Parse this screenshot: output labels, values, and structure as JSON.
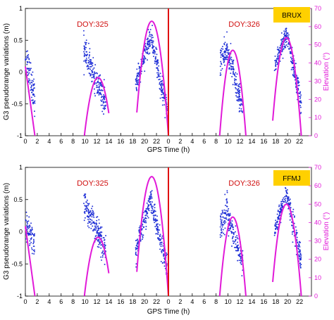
{
  "colors": {
    "pseudorange": "#1f2fd6",
    "elevation": "#e11ad8",
    "divider": "#e01010",
    "doy_label": "#d01010",
    "station_box": "#ffd000"
  },
  "chart_data": [
    {
      "type": "scatter",
      "station": "BRUX",
      "ylabel": "G3 pseudorange variations (m)",
      "y2label": "Elevation (°)",
      "xlabel": "GPS Time (h)",
      "ylim": [
        -1,
        1
      ],
      "y2lim": [
        0,
        70
      ],
      "yticks": [
        "-1",
        "-0.5",
        "0",
        "0.5",
        "1"
      ],
      "y2ticks": [
        "0",
        "10",
        "20",
        "30",
        "40",
        "50",
        "60",
        "70"
      ],
      "days": [
        {
          "label": "DOY:325",
          "xlim": [
            0,
            24
          ],
          "xticks": [
            "0",
            "2",
            "4",
            "6",
            "8",
            "10",
            "12",
            "14",
            "16",
            "18",
            "20",
            "22"
          ],
          "scatter_clusters": [
            {
              "x_start": 0.0,
              "x_end": 1.6,
              "y_start": 0.25,
              "y_end": -0.4,
              "noise": 0.25
            },
            {
              "x_start": 9.8,
              "x_end": 13.5,
              "y_start": 0.35,
              "y_end": -0.5,
              "noise": 0.2
            },
            {
              "x_start": 18.5,
              "x_end": 21.0,
              "y_start": -0.2,
              "y_end": 0.55,
              "noise": 0.15
            },
            {
              "x_start": 21.0,
              "x_end": 23.8,
              "y_start": 0.55,
              "y_end": -0.6,
              "noise": 0.18
            }
          ],
          "elevation_arcs": [
            {
              "x_start": 0.0,
              "x_end": 1.6,
              "el_start": 38,
              "el_end": 0
            },
            {
              "x_start": 9.9,
              "x_end": 14.0,
              "el_peak": 32,
              "x_peak": 12.2
            },
            {
              "x_start": 18.7,
              "x_end": 24.0,
              "el_peak": 63,
              "x_peak": 21.2
            }
          ]
        },
        {
          "label": "DOY:326",
          "xlim": [
            0,
            24
          ],
          "xticks": [
            "0",
            "2",
            "4",
            "6",
            "8",
            "10",
            "12",
            "14",
            "16",
            "18",
            "20",
            "22"
          ],
          "scatter_clusters": [
            {
              "x_start": 8.7,
              "x_end": 10.0,
              "y_start": 0.15,
              "y_end": 0.4,
              "noise": 0.2
            },
            {
              "x_start": 10.0,
              "x_end": 12.5,
              "y_start": 0.3,
              "y_end": -0.6,
              "noise": 0.18
            },
            {
              "x_start": 17.8,
              "x_end": 19.8,
              "y_start": 0.1,
              "y_end": 0.6,
              "noise": 0.15
            },
            {
              "x_start": 19.8,
              "x_end": 22.3,
              "y_start": 0.6,
              "y_end": -0.5,
              "noise": 0.18
            }
          ],
          "elevation_arcs": [
            {
              "x_start": 8.6,
              "x_end": 13.0,
              "el_peak": 47,
              "x_peak": 10.8
            },
            {
              "x_start": 17.5,
              "x_end": 22.3,
              "el_peak": 54,
              "x_peak": 19.8
            }
          ]
        }
      ]
    },
    {
      "type": "scatter",
      "station": "FFMJ",
      "ylabel": "G3 pseudorange variations (m)",
      "y2label": "Elevation (°)",
      "xlabel": "GPS Time (h)",
      "ylim": [
        -1,
        1
      ],
      "y2lim": [
        0,
        70
      ],
      "yticks": [
        "-1",
        "-0.5",
        "0",
        "0.5",
        "1"
      ],
      "y2ticks": [
        "0",
        "10",
        "20",
        "30",
        "40",
        "50",
        "60",
        "70"
      ],
      "days": [
        {
          "label": "DOY:325",
          "xlim": [
            0,
            24
          ],
          "xticks": [
            "0",
            "2",
            "4",
            "6",
            "8",
            "10",
            "12",
            "14",
            "16",
            "18",
            "20",
            "22"
          ],
          "scatter_clusters": [
            {
              "x_start": 0.0,
              "x_end": 1.6,
              "y_start": 0.1,
              "y_end": -0.2,
              "noise": 0.2
            },
            {
              "x_start": 9.8,
              "x_end": 13.5,
              "y_start": 0.45,
              "y_end": -0.3,
              "noise": 0.2
            },
            {
              "x_start": 18.5,
              "x_end": 21.0,
              "y_start": -0.3,
              "y_end": 0.5,
              "noise": 0.15
            },
            {
              "x_start": 21.0,
              "x_end": 23.8,
              "y_start": 0.5,
              "y_end": -0.55,
              "noise": 0.18
            }
          ],
          "elevation_arcs": [
            {
              "x_start": 0.0,
              "x_end": 1.6,
              "el_start": 38,
              "el_end": 0
            },
            {
              "x_start": 9.9,
              "x_end": 14.0,
              "el_peak": 32,
              "x_peak": 12.2
            },
            {
              "x_start": 18.7,
              "x_end": 24.0,
              "el_peak": 65,
              "x_peak": 21.2
            }
          ]
        },
        {
          "label": "DOY:326",
          "xlim": [
            0,
            24
          ],
          "xticks": [
            "0",
            "2",
            "4",
            "6",
            "8",
            "10",
            "12",
            "14",
            "16",
            "18",
            "20",
            "22"
          ],
          "scatter_clusters": [
            {
              "x_start": 8.7,
              "x_end": 10.0,
              "y_start": 0.1,
              "y_end": 0.35,
              "noise": 0.22
            },
            {
              "x_start": 10.0,
              "x_end": 12.5,
              "y_start": 0.2,
              "y_end": -0.5,
              "noise": 0.18
            },
            {
              "x_start": 17.8,
              "x_end": 19.8,
              "y_start": 0.0,
              "y_end": 0.6,
              "noise": 0.15
            },
            {
              "x_start": 19.8,
              "x_end": 22.3,
              "y_start": 0.6,
              "y_end": -0.5,
              "noise": 0.18
            }
          ],
          "elevation_arcs": [
            {
              "x_start": 8.6,
              "x_end": 13.0,
              "el_peak": 43,
              "x_peak": 10.8
            },
            {
              "x_start": 17.5,
              "x_end": 22.3,
              "el_peak": 50,
              "x_peak": 19.8
            }
          ]
        }
      ]
    }
  ]
}
